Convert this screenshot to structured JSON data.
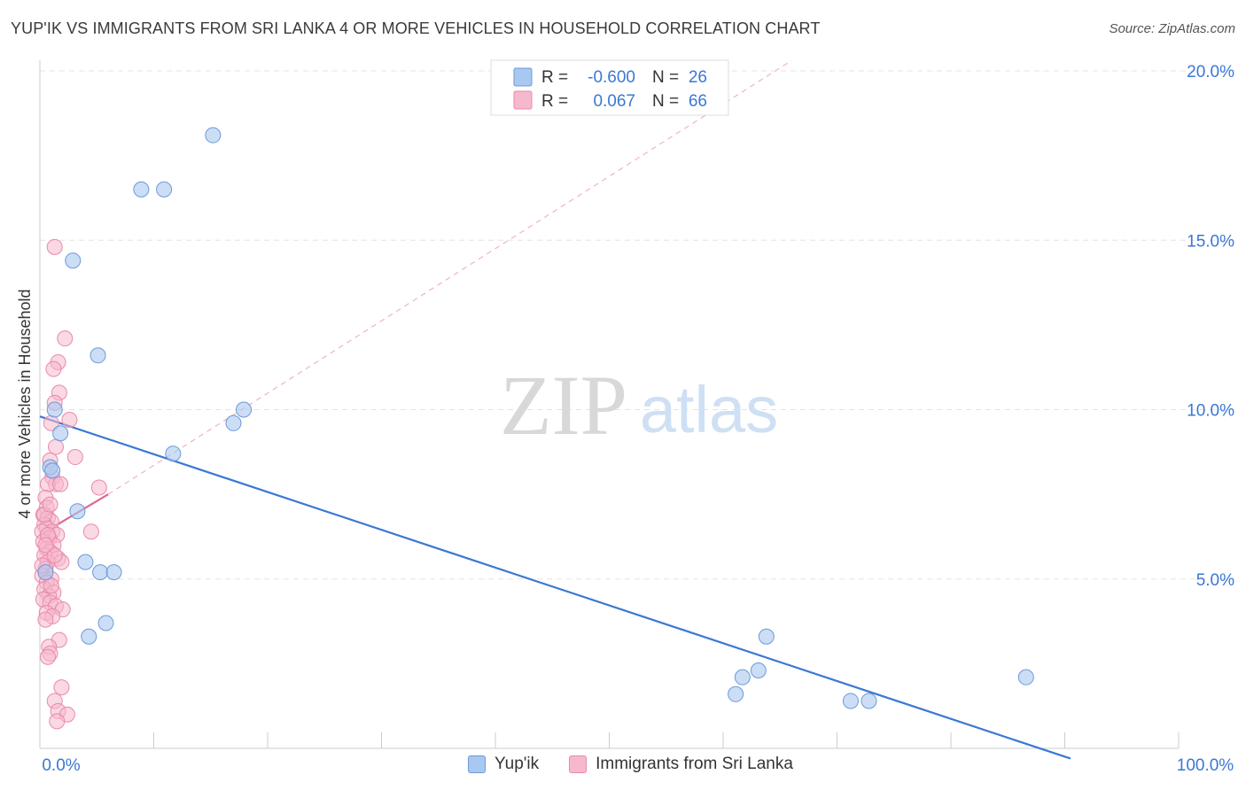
{
  "header": {
    "title": "YUP'IK VS IMMIGRANTS FROM SRI LANKA 4 OR MORE VEHICLES IN HOUSEHOLD CORRELATION CHART",
    "source": "Source: ZipAtlas.com"
  },
  "watermark": {
    "zip": "ZIP",
    "atlas": "atlas"
  },
  "colors": {
    "blue_fill": "#a9c8f0",
    "blue_stroke": "#6b9ad8",
    "blue_line": "#3a78d4",
    "pink_fill": "#f6b8cd",
    "pink_stroke": "#e88aaa",
    "pink_line": "#e06a92",
    "value_text": "#3a78d4",
    "grid": "#e3e3e3"
  },
  "legend": {
    "rows": [
      {
        "series": "Yup'ik",
        "r_label": "R =",
        "r_value": "-0.600",
        "n_label": "N =",
        "n_value": "26"
      },
      {
        "series": "Immigrants from Sri Lanka",
        "r_label": "R =",
        "r_value": "0.067",
        "n_label": "N =",
        "n_value": "66"
      }
    ]
  },
  "chart_data": {
    "type": "scatter",
    "title": "YUP'IK VS IMMIGRANTS FROM SRI LANKA 4 OR MORE VEHICLES IN HOUSEHOLD CORRELATION CHART",
    "xlabel": "",
    "ylabel": "4 or more Vehicles in Household",
    "xlim": [
      0,
      100
    ],
    "ylim": [
      0,
      20
    ],
    "x_tick_labels": [
      "0.0%",
      "100.0%"
    ],
    "y_ticks": [
      5,
      10,
      15,
      20
    ],
    "y_tick_labels": [
      "5.0%",
      "10.0%",
      "15.0%",
      "20.0%"
    ],
    "series": [
      {
        "name": "Yup'ik",
        "r": -0.6,
        "n": 26,
        "trend": {
          "x0": 0,
          "y0": 9.8,
          "x1": 90.5,
          "y1": -0.3
        },
        "points": [
          [
            15.2,
            18.1
          ],
          [
            8.9,
            16.5
          ],
          [
            10.9,
            16.5
          ],
          [
            2.9,
            14.4
          ],
          [
            5.1,
            11.6
          ],
          [
            1.3,
            10.0
          ],
          [
            17.9,
            10.0
          ],
          [
            17.0,
            9.6
          ],
          [
            1.8,
            9.3
          ],
          [
            11.7,
            8.7
          ],
          [
            0.9,
            8.3
          ],
          [
            3.3,
            7.0
          ],
          [
            4.0,
            5.5
          ],
          [
            5.3,
            5.2
          ],
          [
            6.5,
            5.2
          ],
          [
            4.3,
            3.3
          ],
          [
            5.8,
            3.7
          ],
          [
            63.8,
            3.3
          ],
          [
            63.1,
            2.3
          ],
          [
            61.7,
            2.1
          ],
          [
            61.1,
            1.6
          ],
          [
            71.2,
            1.4
          ],
          [
            72.8,
            1.4
          ],
          [
            86.6,
            2.1
          ],
          [
            0.5,
            5.2
          ],
          [
            1.1,
            8.2
          ]
        ]
      },
      {
        "name": "Immigrants from Sri Lanka",
        "r": 0.067,
        "n": 66,
        "trend": {
          "x0": 0,
          "y0": 6.3,
          "x1": 6.0,
          "y1": 7.5
        },
        "trend_ext": {
          "x0": 6.0,
          "y0": 7.5,
          "x1": 66.0,
          "y1": 20.3
        },
        "points": [
          [
            1.3,
            14.8
          ],
          [
            2.2,
            12.1
          ],
          [
            1.6,
            11.4
          ],
          [
            1.2,
            11.2
          ],
          [
            1.7,
            10.5
          ],
          [
            1.3,
            10.2
          ],
          [
            2.6,
            9.7
          ],
          [
            1.0,
            9.6
          ],
          [
            1.4,
            8.9
          ],
          [
            3.1,
            8.6
          ],
          [
            0.9,
            8.5
          ],
          [
            1.1,
            8.0
          ],
          [
            1.4,
            7.8
          ],
          [
            0.7,
            7.8
          ],
          [
            5.2,
            7.7
          ],
          [
            0.5,
            7.4
          ],
          [
            0.6,
            7.1
          ],
          [
            0.3,
            6.9
          ],
          [
            0.7,
            6.8
          ],
          [
            1.0,
            6.7
          ],
          [
            0.4,
            6.6
          ],
          [
            0.6,
            6.5
          ],
          [
            1.1,
            6.4
          ],
          [
            0.2,
            6.4
          ],
          [
            4.5,
            6.4
          ],
          [
            1.5,
            6.3
          ],
          [
            0.8,
            6.2
          ],
          [
            0.3,
            6.1
          ],
          [
            1.2,
            6.0
          ],
          [
            0.6,
            5.9
          ],
          [
            0.9,
            5.8
          ],
          [
            0.4,
            5.7
          ],
          [
            1.6,
            5.6
          ],
          [
            0.7,
            5.5
          ],
          [
            1.9,
            5.5
          ],
          [
            0.5,
            5.3
          ],
          [
            0.2,
            5.1
          ],
          [
            1.0,
            5.0
          ],
          [
            0.6,
            4.9
          ],
          [
            0.4,
            4.7
          ],
          [
            1.2,
            4.6
          ],
          [
            0.8,
            4.5
          ],
          [
            0.3,
            4.4
          ],
          [
            0.9,
            4.3
          ],
          [
            1.4,
            4.2
          ],
          [
            2.0,
            4.1
          ],
          [
            0.6,
            4.0
          ],
          [
            1.1,
            3.9
          ],
          [
            0.5,
            3.8
          ],
          [
            1.7,
            3.2
          ],
          [
            0.8,
            3.0
          ],
          [
            0.9,
            2.8
          ],
          [
            0.7,
            2.7
          ],
          [
            1.9,
            1.8
          ],
          [
            1.3,
            1.4
          ],
          [
            1.6,
            1.1
          ],
          [
            2.4,
            1.0
          ],
          [
            1.5,
            0.8
          ],
          [
            0.4,
            6.9
          ],
          [
            0.7,
            6.3
          ],
          [
            1.3,
            5.7
          ],
          [
            0.2,
            5.4
          ],
          [
            1.8,
            7.8
          ],
          [
            0.9,
            7.2
          ],
          [
            0.5,
            6.0
          ],
          [
            1.0,
            4.8
          ]
        ]
      }
    ]
  },
  "bottom_legend": {
    "items": [
      {
        "label": "Yup'ik"
      },
      {
        "label": "Immigrants from Sri Lanka"
      }
    ]
  }
}
